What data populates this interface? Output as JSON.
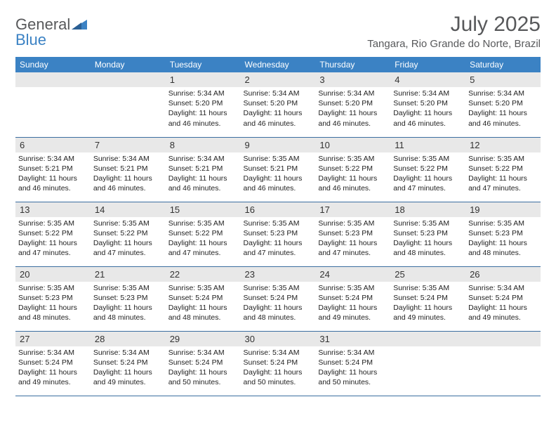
{
  "logo": {
    "part1": "General",
    "part2": "Blue"
  },
  "title": "July 2025",
  "location": "Tangara, Rio Grande do Norte, Brazil",
  "colors": {
    "header_bg": "#3b82c4",
    "header_text": "#ffffff",
    "daynum_bg": "#e8e8e8",
    "rule": "#3b6ea0",
    "logo_gray": "#58595b",
    "logo_blue": "#3b82c4"
  },
  "weekdays": [
    "Sunday",
    "Monday",
    "Tuesday",
    "Wednesday",
    "Thursday",
    "Friday",
    "Saturday"
  ],
  "weeks": [
    [
      {
        "n": "",
        "lines": []
      },
      {
        "n": "",
        "lines": []
      },
      {
        "n": "1",
        "lines": [
          "Sunrise: 5:34 AM",
          "Sunset: 5:20 PM",
          "Daylight: 11 hours and 46 minutes."
        ]
      },
      {
        "n": "2",
        "lines": [
          "Sunrise: 5:34 AM",
          "Sunset: 5:20 PM",
          "Daylight: 11 hours and 46 minutes."
        ]
      },
      {
        "n": "3",
        "lines": [
          "Sunrise: 5:34 AM",
          "Sunset: 5:20 PM",
          "Daylight: 11 hours and 46 minutes."
        ]
      },
      {
        "n": "4",
        "lines": [
          "Sunrise: 5:34 AM",
          "Sunset: 5:20 PM",
          "Daylight: 11 hours and 46 minutes."
        ]
      },
      {
        "n": "5",
        "lines": [
          "Sunrise: 5:34 AM",
          "Sunset: 5:20 PM",
          "Daylight: 11 hours and 46 minutes."
        ]
      }
    ],
    [
      {
        "n": "6",
        "lines": [
          "Sunrise: 5:34 AM",
          "Sunset: 5:21 PM",
          "Daylight: 11 hours and 46 minutes."
        ]
      },
      {
        "n": "7",
        "lines": [
          "Sunrise: 5:34 AM",
          "Sunset: 5:21 PM",
          "Daylight: 11 hours and 46 minutes."
        ]
      },
      {
        "n": "8",
        "lines": [
          "Sunrise: 5:34 AM",
          "Sunset: 5:21 PM",
          "Daylight: 11 hours and 46 minutes."
        ]
      },
      {
        "n": "9",
        "lines": [
          "Sunrise: 5:35 AM",
          "Sunset: 5:21 PM",
          "Daylight: 11 hours and 46 minutes."
        ]
      },
      {
        "n": "10",
        "lines": [
          "Sunrise: 5:35 AM",
          "Sunset: 5:22 PM",
          "Daylight: 11 hours and 46 minutes."
        ]
      },
      {
        "n": "11",
        "lines": [
          "Sunrise: 5:35 AM",
          "Sunset: 5:22 PM",
          "Daylight: 11 hours and 47 minutes."
        ]
      },
      {
        "n": "12",
        "lines": [
          "Sunrise: 5:35 AM",
          "Sunset: 5:22 PM",
          "Daylight: 11 hours and 47 minutes."
        ]
      }
    ],
    [
      {
        "n": "13",
        "lines": [
          "Sunrise: 5:35 AM",
          "Sunset: 5:22 PM",
          "Daylight: 11 hours and 47 minutes."
        ]
      },
      {
        "n": "14",
        "lines": [
          "Sunrise: 5:35 AM",
          "Sunset: 5:22 PM",
          "Daylight: 11 hours and 47 minutes."
        ]
      },
      {
        "n": "15",
        "lines": [
          "Sunrise: 5:35 AM",
          "Sunset: 5:22 PM",
          "Daylight: 11 hours and 47 minutes."
        ]
      },
      {
        "n": "16",
        "lines": [
          "Sunrise: 5:35 AM",
          "Sunset: 5:23 PM",
          "Daylight: 11 hours and 47 minutes."
        ]
      },
      {
        "n": "17",
        "lines": [
          "Sunrise: 5:35 AM",
          "Sunset: 5:23 PM",
          "Daylight: 11 hours and 47 minutes."
        ]
      },
      {
        "n": "18",
        "lines": [
          "Sunrise: 5:35 AM",
          "Sunset: 5:23 PM",
          "Daylight: 11 hours and 48 minutes."
        ]
      },
      {
        "n": "19",
        "lines": [
          "Sunrise: 5:35 AM",
          "Sunset: 5:23 PM",
          "Daylight: 11 hours and 48 minutes."
        ]
      }
    ],
    [
      {
        "n": "20",
        "lines": [
          "Sunrise: 5:35 AM",
          "Sunset: 5:23 PM",
          "Daylight: 11 hours and 48 minutes."
        ]
      },
      {
        "n": "21",
        "lines": [
          "Sunrise: 5:35 AM",
          "Sunset: 5:23 PM",
          "Daylight: 11 hours and 48 minutes."
        ]
      },
      {
        "n": "22",
        "lines": [
          "Sunrise: 5:35 AM",
          "Sunset: 5:24 PM",
          "Daylight: 11 hours and 48 minutes."
        ]
      },
      {
        "n": "23",
        "lines": [
          "Sunrise: 5:35 AM",
          "Sunset: 5:24 PM",
          "Daylight: 11 hours and 48 minutes."
        ]
      },
      {
        "n": "24",
        "lines": [
          "Sunrise: 5:35 AM",
          "Sunset: 5:24 PM",
          "Daylight: 11 hours and 49 minutes."
        ]
      },
      {
        "n": "25",
        "lines": [
          "Sunrise: 5:35 AM",
          "Sunset: 5:24 PM",
          "Daylight: 11 hours and 49 minutes."
        ]
      },
      {
        "n": "26",
        "lines": [
          "Sunrise: 5:34 AM",
          "Sunset: 5:24 PM",
          "Daylight: 11 hours and 49 minutes."
        ]
      }
    ],
    [
      {
        "n": "27",
        "lines": [
          "Sunrise: 5:34 AM",
          "Sunset: 5:24 PM",
          "Daylight: 11 hours and 49 minutes."
        ]
      },
      {
        "n": "28",
        "lines": [
          "Sunrise: 5:34 AM",
          "Sunset: 5:24 PM",
          "Daylight: 11 hours and 49 minutes."
        ]
      },
      {
        "n": "29",
        "lines": [
          "Sunrise: 5:34 AM",
          "Sunset: 5:24 PM",
          "Daylight: 11 hours and 50 minutes."
        ]
      },
      {
        "n": "30",
        "lines": [
          "Sunrise: 5:34 AM",
          "Sunset: 5:24 PM",
          "Daylight: 11 hours and 50 minutes."
        ]
      },
      {
        "n": "31",
        "lines": [
          "Sunrise: 5:34 AM",
          "Sunset: 5:24 PM",
          "Daylight: 11 hours and 50 minutes."
        ]
      },
      {
        "n": "",
        "lines": []
      },
      {
        "n": "",
        "lines": []
      }
    ]
  ]
}
